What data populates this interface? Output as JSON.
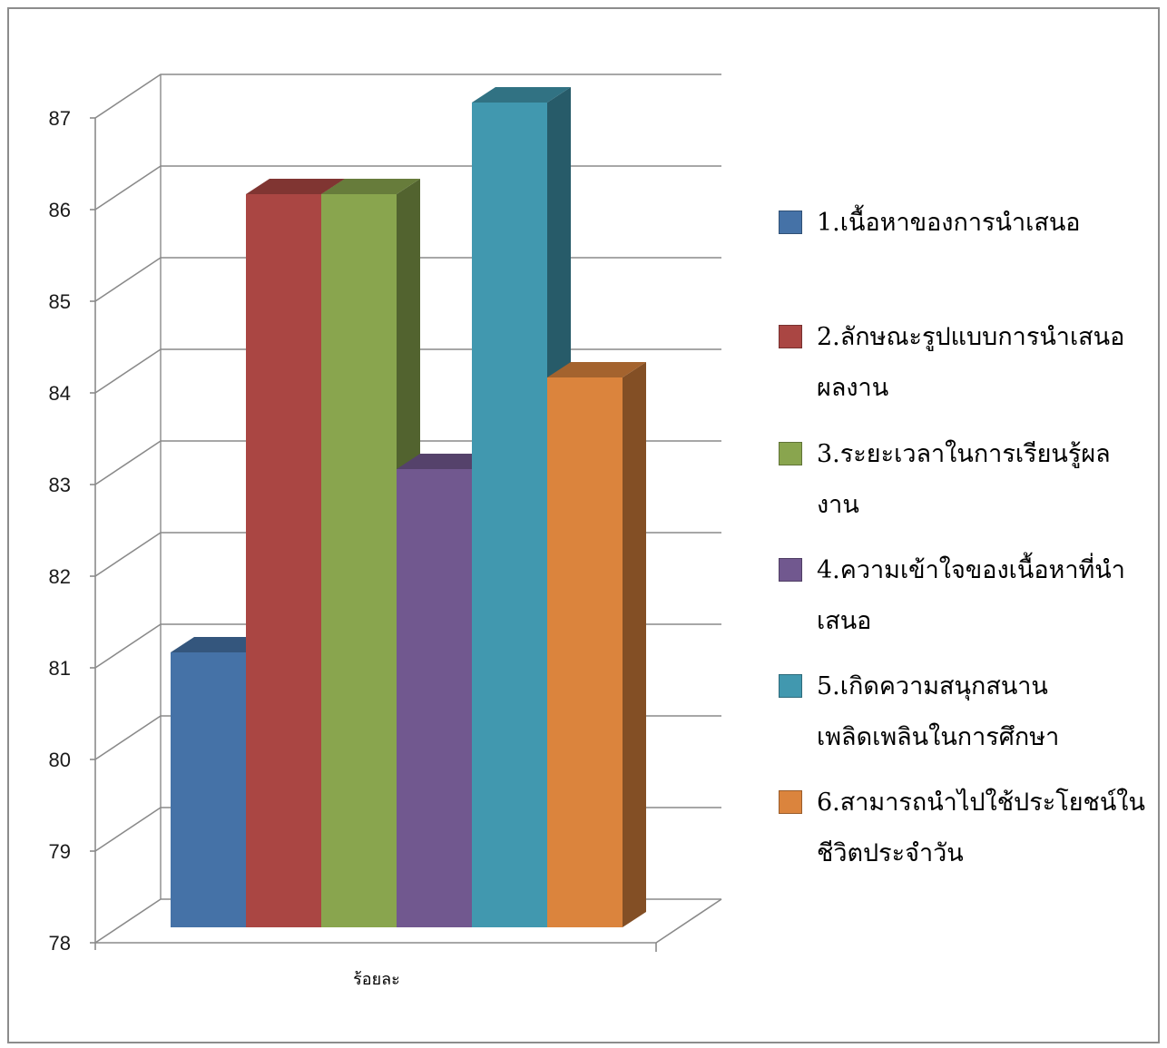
{
  "chart_data": {
    "type": "bar",
    "title": "",
    "xlabel": "ร้อยละ",
    "ylabel": "",
    "ylim": [
      78,
      87
    ],
    "yticks": [
      78,
      79,
      80,
      81,
      82,
      83,
      84,
      85,
      86,
      87
    ],
    "categories": [
      "ร้อยละ"
    ],
    "grid": true,
    "three_d": true,
    "legend_position": "right",
    "series": [
      {
        "name": "1.เนื้อหาของการนำเสนอ",
        "values": [
          81
        ],
        "color": "#4572A7"
      },
      {
        "name": "2.ลักษณะรูปแบบการนำเสนอผลงาน",
        "values": [
          86
        ],
        "color": "#AA4643"
      },
      {
        "name": "3.ระยะเวลาในการเรียนรู้ผลงาน",
        "values": [
          86
        ],
        "color": "#89A54E"
      },
      {
        "name": "4.ความเข้าใจของเนื้อหาที่นำเสนอ",
        "values": [
          83
        ],
        "color": "#71588F"
      },
      {
        "name": "5.เกิดความสนุกสนานเพลิดเพลินในการศึกษา",
        "values": [
          87
        ],
        "color": "#4198AF"
      },
      {
        "name": "6.สามารถนำไปใช้ประโยชน์ในชีวิตประจำวัน",
        "values": [
          84
        ],
        "color": "#DB843D"
      }
    ]
  },
  "legend": {
    "items": [
      {
        "label": "1.เนื้อหาของการนำเสนอ",
        "color": "#4572A7"
      },
      {
        "label": "2.ลักษณะรูปแบบการนำเสนอผลงาน",
        "color": "#AA4643"
      },
      {
        "label": "3.ระยะเวลาในการเรียนรู้ผลงาน",
        "color": "#89A54E"
      },
      {
        "label": "4.ความเข้าใจของเนื้อหาที่นำเสนอ",
        "color": "#71588F"
      },
      {
        "label": "5.เกิดความสนุกสนานเพลิดเพลินในการศึกษา",
        "color": "#4198AF"
      },
      {
        "label": "6.สามารถนำไปใช้ประโยชน์ในชีวิตประจำวัน",
        "color": "#DB843D"
      }
    ]
  }
}
